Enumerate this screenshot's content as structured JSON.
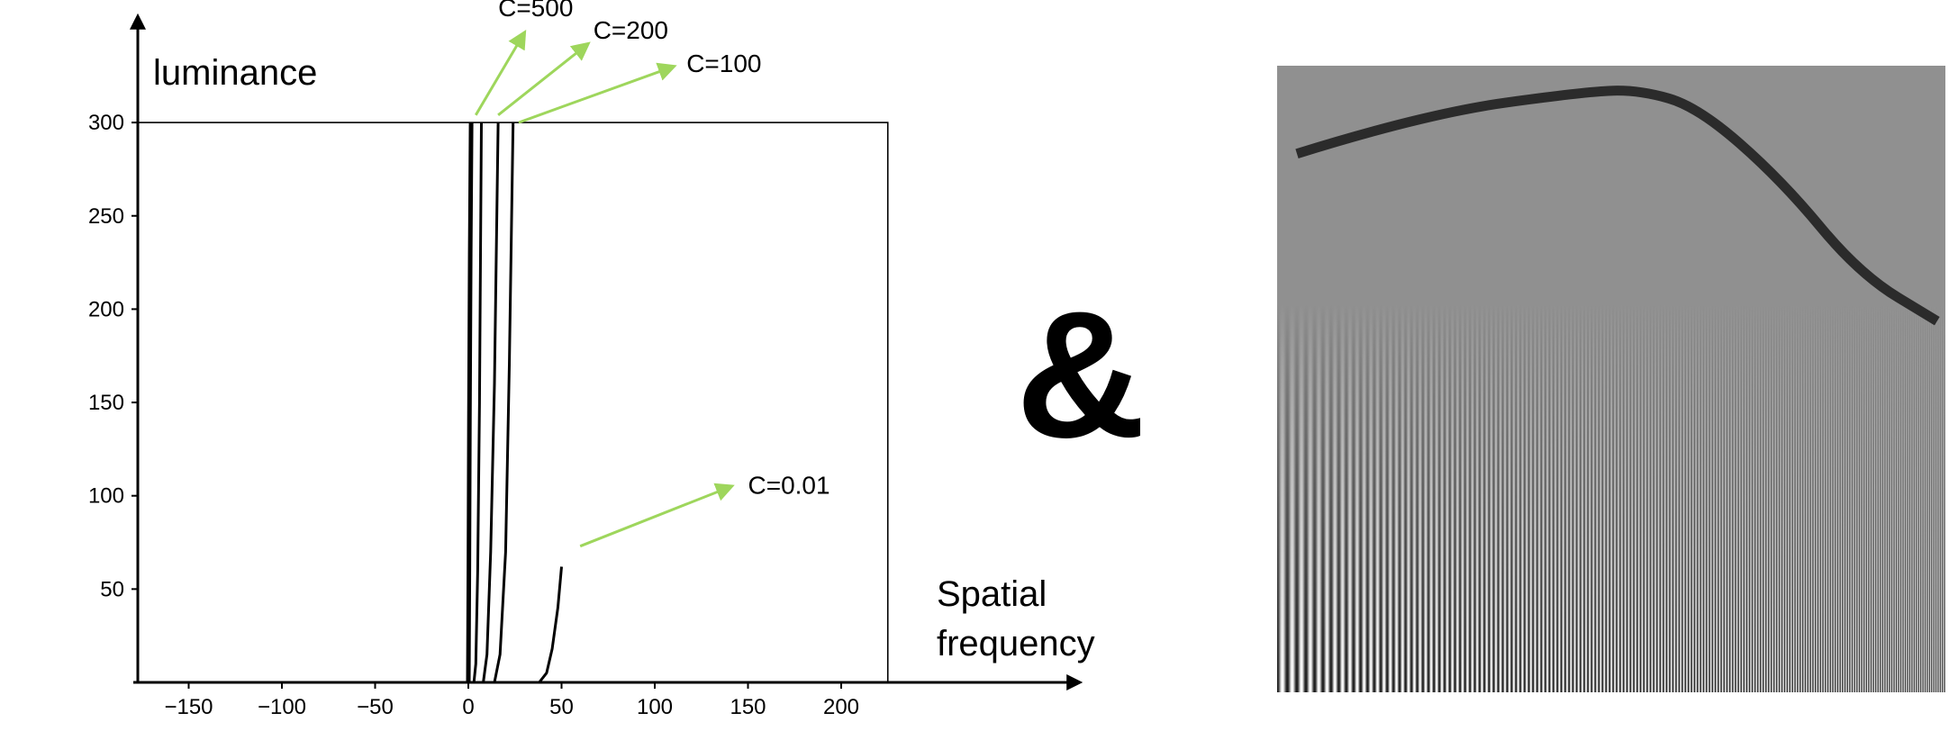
{
  "chart_data": [
    {
      "type": "line",
      "title": "",
      "ylabel": "luminance",
      "xlabel": "Spatial frequency",
      "xlim": [
        -180,
        330
      ],
      "ylim": [
        0,
        360
      ],
      "plot_box": {
        "x": [
          0,
          225
        ],
        "y": [
          0,
          300
        ]
      },
      "x_ticks": [
        -150,
        -100,
        -50,
        0,
        50,
        100,
        150,
        200
      ],
      "y_ticks": [
        50,
        100,
        150,
        200,
        250,
        300
      ],
      "grid": false,
      "series": [
        {
          "name": "C=500",
          "x": [
            0,
            0.3,
            0.6,
            1.0,
            1.5
          ],
          "y": [
            0,
            60,
            140,
            230,
            300
          ]
        },
        {
          "name": "",
          "x": [
            3,
            4,
            5,
            6,
            7
          ],
          "y": [
            0,
            10,
            60,
            150,
            300
          ]
        },
        {
          "name": "C=200",
          "x": [
            8,
            10,
            12,
            14,
            16
          ],
          "y": [
            0,
            15,
            70,
            160,
            300
          ]
        },
        {
          "name": "C=100",
          "x": [
            14,
            17,
            20,
            22,
            24
          ],
          "y": [
            0,
            15,
            70,
            170,
            300
          ]
        },
        {
          "name": "C=0.01",
          "x": [
            38,
            42,
            45,
            48,
            50
          ],
          "y": [
            0,
            5,
            18,
            40,
            62
          ]
        }
      ],
      "annotations": [
        {
          "text": "C=500",
          "arrow_from": [
            4,
            304
          ],
          "arrow_to": [
            30,
            348
          ],
          "text_at": [
            16,
            357
          ]
        },
        {
          "text": "C=200",
          "arrow_from": [
            16,
            304
          ],
          "arrow_to": [
            64,
            342
          ],
          "text_at": [
            67,
            345
          ]
        },
        {
          "text": "C=100",
          "arrow_from": [
            27,
            300
          ],
          "arrow_to": [
            110,
            330
          ],
          "text_at": [
            117,
            327
          ]
        },
        {
          "text": "C=0.01",
          "arrow_from": [
            60,
            73
          ],
          "arrow_to": [
            141,
            105
          ],
          "text_at": [
            150,
            101
          ]
        }
      ],
      "arrow_color": "#9ed65c",
      "line_color": "#000000"
    }
  ],
  "separator": "&",
  "colors": {
    "curve_overlay": "#2b2b2b",
    "grating_mid_gray": "#909090"
  },
  "grating": {
    "title": "",
    "cycles_shown": 60,
    "contrast_curve": [
      {
        "f": 0.0,
        "contrast": 0.81
      },
      {
        "f": 0.2,
        "contrast": 0.93
      },
      {
        "f": 0.45,
        "contrast": 0.996
      },
      {
        "f": 0.53,
        "contrast": 1.0
      },
      {
        "f": 0.62,
        "contrast": 0.95
      },
      {
        "f": 0.75,
        "contrast": 0.73
      },
      {
        "f": 0.87,
        "contrast": 0.45
      },
      {
        "f": 0.99,
        "contrast": 0.31
      }
    ]
  }
}
